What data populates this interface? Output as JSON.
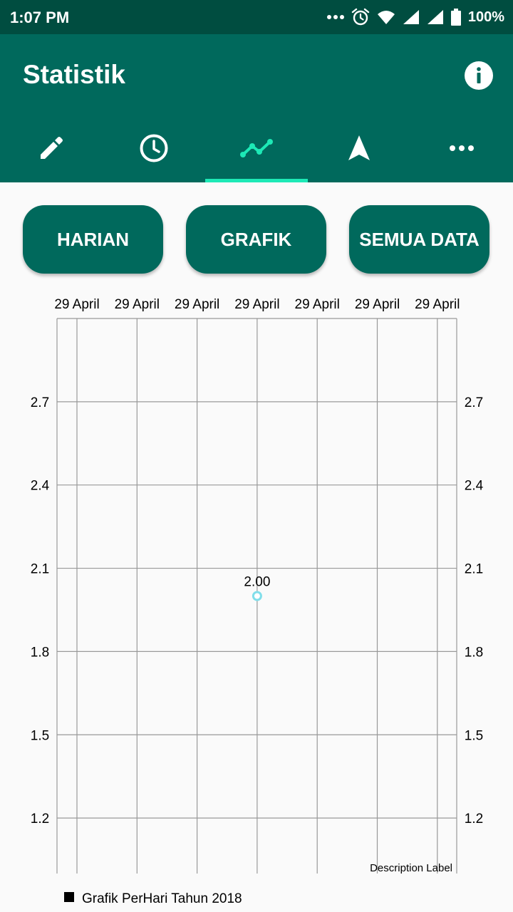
{
  "status_bar": {
    "time": "1:07 PM",
    "battery": "100%",
    "icons": [
      "more-dots-icon",
      "alarm-icon",
      "wifi-icon",
      "signal-icon",
      "signal-icon",
      "battery-icon"
    ]
  },
  "app_bar": {
    "title": "Statistik",
    "info_icon": "info-icon"
  },
  "tabs": [
    {
      "icon": "pencil-icon",
      "selected": false
    },
    {
      "icon": "clock-icon",
      "selected": false
    },
    {
      "icon": "line-chart-icon",
      "selected": true
    },
    {
      "icon": "navigation-arrow-icon",
      "selected": false
    },
    {
      "icon": "more-horizontal-icon",
      "selected": false
    }
  ],
  "buttons": {
    "daily": "HARIAN",
    "chart": "GRAFIK",
    "all_data": "SEMUA DATA"
  },
  "colors": {
    "status_bar": "#004d40",
    "primary": "#00695c",
    "tab_indicator": "#1de9b6",
    "data_point": "#80deea"
  },
  "chart_data": {
    "type": "line",
    "x_tick_labels": [
      "29 April",
      "29 April",
      "29 April",
      "29 April",
      "29 April",
      "29 April",
      "29 April"
    ],
    "y_ticks": [
      1.2,
      1.5,
      1.8,
      2.1,
      2.4,
      2.7
    ],
    "y_tick_labels": [
      "1.2",
      "1.5",
      "1.8",
      "2.1",
      "2.4",
      "2.7"
    ],
    "ylim": [
      1.0,
      3.0
    ],
    "series": [
      {
        "name": "Grafik PerHari Tahun 2018",
        "points": [
          {
            "x_index": 3,
            "y": 2.0
          }
        ],
        "value_labels": [
          "2.00"
        ]
      }
    ],
    "description": "Description Label",
    "grid": true,
    "legend_position": "bottom-left"
  }
}
